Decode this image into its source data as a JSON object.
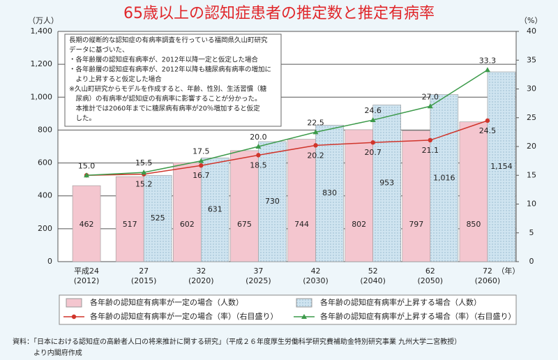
{
  "chart_data": {
    "type": "bar_line",
    "title": "65歳以上の認知症患者の推定数と推定有病率",
    "y_label": "（万人）",
    "y2_label": "（%）",
    "x_label": "（年）",
    "categories": [
      "平成24",
      "27",
      "32",
      "37",
      "42",
      "52",
      "62",
      "72"
    ],
    "category_years": [
      "(2012)",
      "(2015)",
      "(2020)",
      "(2025)",
      "(2030)",
      "(2040)",
      "(2050)",
      "(2060)"
    ],
    "ylim": [
      0,
      1400
    ],
    "yticks": [
      0,
      200,
      400,
      600,
      800,
      {
        "value": 1000,
        "label": "1,000"
      },
      {
        "value": 1200,
        "label": "1,200"
      },
      {
        "value": 1400,
        "label": "1,400"
      }
    ],
    "y2lim": [
      0,
      40
    ],
    "y2ticks": [
      0,
      5,
      10,
      15,
      20,
      25,
      30,
      35,
      40
    ],
    "grid": true,
    "series": [
      {
        "name": "各年齢の認知症有病率が一定の場合（人数）",
        "kind": "bar",
        "color": "#f4c6cf",
        "values": [
          462,
          517,
          602,
          675,
          744,
          802,
          797,
          850
        ]
      },
      {
        "name": "各年齢の認知症有病率が上昇する場合（人数）",
        "kind": "bar",
        "color": "#cfe4f0",
        "values": [
          null,
          525,
          631,
          730,
          830,
          953,
          1016,
          1154
        ],
        "value_labels": [
          null,
          "525",
          "631",
          "730",
          "830",
          "953",
          "1,016",
          "1,154"
        ]
      },
      {
        "name": "各年齢の認知症有病率が一定の場合（率）（右目盛り）",
        "kind": "line",
        "axis": "y2",
        "color": "#d0352b",
        "values": [
          15.0,
          15.2,
          16.7,
          18.5,
          20.2,
          20.7,
          21.1,
          24.5
        ],
        "value_labels": [
          null,
          "15.2",
          "16.7",
          "18.5",
          "20.2",
          "20.7",
          "21.1",
          "24.5"
        ]
      },
      {
        "name": "各年齢の認知症有病率が上昇する場合（率）（右目盛り）",
        "kind": "line",
        "axis": "y2",
        "color": "#3c9a4a",
        "values": [
          15.0,
          15.5,
          17.5,
          20.0,
          22.5,
          24.6,
          27.0,
          33.3
        ],
        "value_labels": [
          "15.0",
          "15.5",
          "17.5",
          "20.0",
          "22.5",
          "24.6",
          "27.0",
          "33.3"
        ]
      }
    ],
    "annotation": [
      "長期の縦断的な認知症の有病率調査を行っている福岡県久山町研究",
      "データに基づいた、",
      "・各年齢層の認知症有病率が、2012年以降一定と仮定した場合",
      "・各年齢層の認知症有病率が、2012年以降も糖尿病有病率の増加に",
      "　より上昇すると仮定した場合",
      "※久山町研究からモデルを作成すると、年齢、性別、生活習慣（糖",
      "　尿病）の有病率が認知症の有病率に影響することが分かった。",
      "　本推計では2060年までに糖尿病有病率が20％増加すると仮定",
      "　した。"
    ],
    "source": [
      "資料：「日本における認知症の高齢者人口の将来推計に関する研究」（平成２６年度厚生労働科学研究費補助金特別研究事業 九州大学二宮教授）",
      "　　　より内閣府作成"
    ]
  }
}
